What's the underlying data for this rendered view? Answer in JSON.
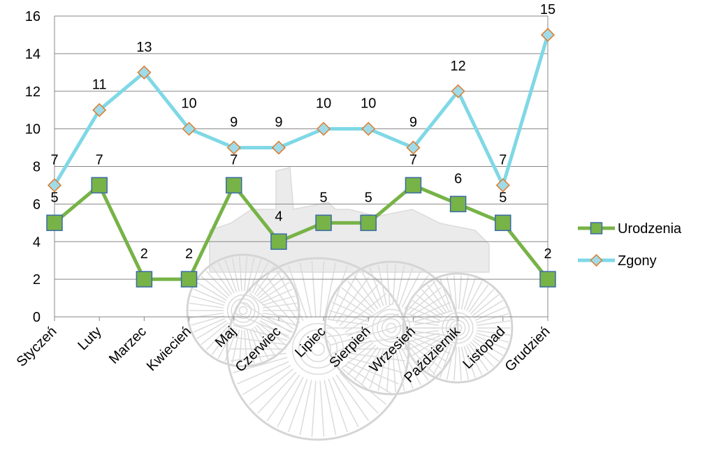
{
  "chart_data": {
    "type": "line",
    "title": "",
    "xlabel": "",
    "ylabel": "",
    "categories": [
      "Styczeń",
      "Luty",
      "Marzec",
      "Kwiecień",
      "Maj",
      "Czerwiec",
      "Lipiec",
      "Sierpień",
      "Wrzesień",
      "Październik",
      "Listopad",
      "Grudzień"
    ],
    "ylim": [
      0,
      16
    ],
    "yticks": [
      0,
      2,
      4,
      6,
      8,
      10,
      12,
      14,
      16
    ],
    "grid": "horizontal",
    "legend_position": "right",
    "data_labels": true,
    "series": [
      {
        "name": "Urodzenia",
        "values": [
          5,
          7,
          2,
          2,
          7,
          4,
          5,
          5,
          7,
          6,
          5,
          2
        ],
        "line_color": "#77b347",
        "marker": "square",
        "marker_fill": "#77b347",
        "marker_stroke": "#3b6aa8"
      },
      {
        "name": "Zgony",
        "values": [
          7,
          11,
          13,
          10,
          9,
          9,
          10,
          10,
          9,
          12,
          7,
          15
        ],
        "line_color": "#7fd8e6",
        "marker": "diamond",
        "marker_fill": "#9fdcea",
        "marker_stroke": "#e07a2c"
      }
    ]
  }
}
